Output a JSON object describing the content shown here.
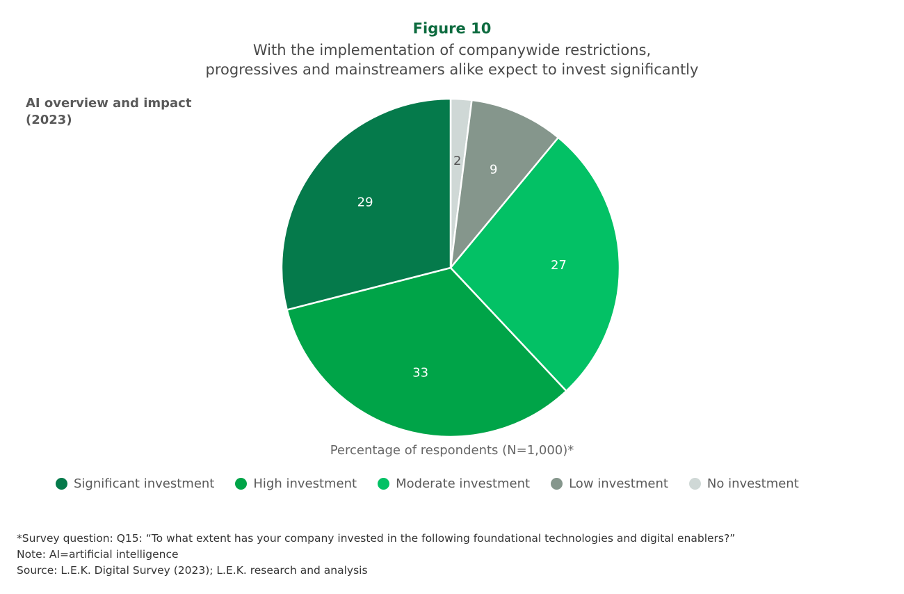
{
  "figure_label": "Figure 10",
  "subtitle_lines": [
    "With the implementation of companywide restrictions,",
    "progressives and mainstreamers alike expect to invest significantly"
  ],
  "chart_data": {
    "type": "pie",
    "title": "AI overview and impact (2023)",
    "title_lines": [
      "AI overview and impact",
      "(2023)"
    ],
    "xlabel": "Percentage of respondents (N=1,000)*",
    "legend_position": "bottom",
    "categories": [
      "Significant investment",
      "High investment",
      "Moderate investment",
      "Low investment",
      "No investment"
    ],
    "values": [
      29,
      33,
      27,
      9,
      2
    ],
    "colors": [
      "#057a4b",
      "#00a448",
      "#03c165",
      "#85968c",
      "#cfd8d6"
    ],
    "label_colors": [
      "#ffffff",
      "#ffffff",
      "#ffffff",
      "#ffffff",
      "#555555"
    ]
  },
  "notes": [
    "*Survey question: Q15: “To what extent has your company invested in the following foundational technologies and digital enablers?”",
    "Note: AI=artificial intelligence",
    "Source: L.E.K. Digital Survey (2023); L.E.K. research and analysis"
  ]
}
